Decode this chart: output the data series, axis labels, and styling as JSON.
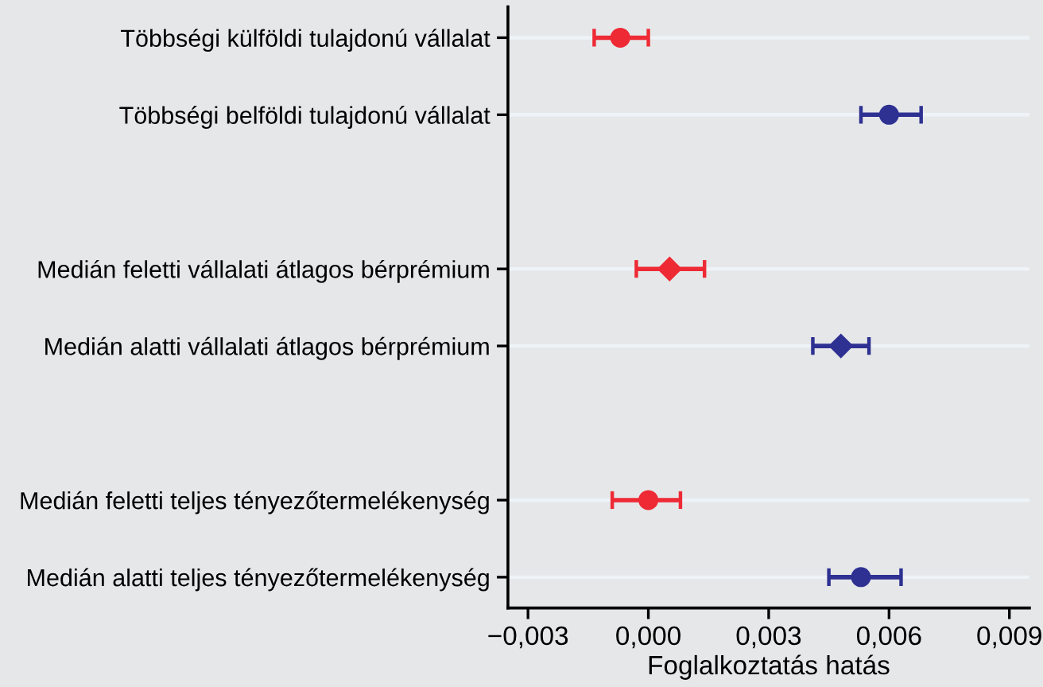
{
  "chart_data": {
    "type": "scatter",
    "orientation": "horizontal",
    "xlabel": "Foglalkoztatás hatás",
    "categories": [
      "Többségi külföldi tulajdonú vállalat",
      "Többségi belföldi tulajdonú vállalat",
      null,
      "Medián feletti vállalati átlagos bérprémium",
      "Medián alatti vállalati átlagos bérprémium",
      null,
      "Medián feletti teljes tényezőtermelékenység",
      "Medián alatti teljes tényezőtermelékenység"
    ],
    "series": [
      {
        "marker": "circle",
        "colors": [
          "#ee2a35",
          "#2e3192",
          null,
          null,
          null,
          null,
          null,
          null
        ],
        "values": [
          -0.0007,
          0.006,
          null,
          null,
          null,
          null,
          null,
          null
        ],
        "errors": [
          [
            -0.00135,
            0.0
          ],
          [
            0.0053,
            0.0068
          ],
          null,
          null,
          null,
          null,
          null,
          null
        ]
      },
      {
        "marker": "diamond",
        "colors": [
          null,
          null,
          null,
          "#ee2a35",
          "#2e3192",
          null,
          null,
          null
        ],
        "values": [
          null,
          null,
          null,
          0.00053,
          0.0048,
          null,
          null,
          null
        ],
        "errors": [
          null,
          null,
          null,
          [
            -0.0003,
            0.0014
          ],
          [
            0.0041,
            0.0055
          ],
          null,
          null,
          null
        ]
      },
      {
        "marker": "circle",
        "colors": [
          null,
          null,
          null,
          null,
          null,
          null,
          "#ee2a35",
          "#2e3192"
        ],
        "values": [
          null,
          null,
          null,
          null,
          null,
          null,
          0.0,
          0.0053
        ],
        "errors": [
          null,
          null,
          null,
          null,
          null,
          null,
          [
            -0.0009,
            0.0008
          ],
          [
            0.0045,
            0.0063
          ]
        ]
      }
    ],
    "xlim": [
      -0.0035,
      0.0095
    ],
    "xticks": [
      {
        "value": -0.003,
        "label": "−0,003"
      },
      {
        "value": 0.0,
        "label": "0,000"
      },
      {
        "value": 0.003,
        "label": "0,003"
      },
      {
        "value": 0.006,
        "label": "0,006"
      },
      {
        "value": 0.009,
        "label": "0,009"
      }
    ],
    "grid": "y"
  }
}
